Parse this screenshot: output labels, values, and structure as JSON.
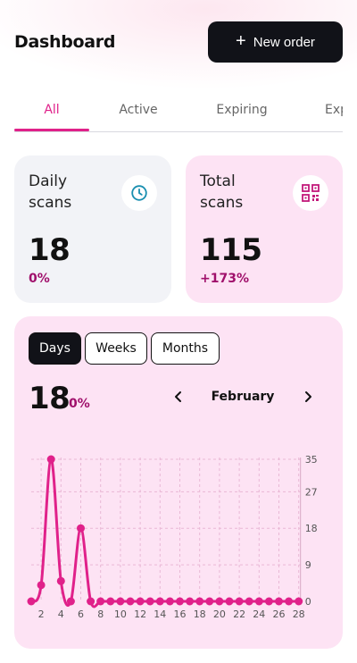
{
  "header": {
    "title": "Dashboard",
    "new_order_label": "New order"
  },
  "tabs": [
    {
      "label": "All",
      "active": true
    },
    {
      "label": "Active",
      "active": false
    },
    {
      "label": "Expiring",
      "active": false
    },
    {
      "label": "Expired",
      "active": false
    }
  ],
  "cards": {
    "daily": {
      "label": "Daily scans",
      "value": "18",
      "change": "0%",
      "icon": "clock-icon"
    },
    "total": {
      "label": "Total scans",
      "value": "115",
      "change": "+173%",
      "icon": "qr-code-icon"
    }
  },
  "chart_panel": {
    "segments": [
      {
        "label": "Days",
        "active": true
      },
      {
        "label": "Weeks",
        "active": false
      },
      {
        "label": "Months",
        "active": false
      }
    ],
    "value": "18",
    "change": "0%",
    "month": "February"
  },
  "colors": {
    "accent": "#e0218a",
    "accent_dark": "#a0106b",
    "card_pink": "#fde3f4",
    "card_gray": "#f2f3f7",
    "button_dark": "#111218"
  },
  "chart_data": {
    "type": "line",
    "x": [
      1,
      2,
      3,
      4,
      5,
      6,
      7,
      8,
      9,
      10,
      11,
      12,
      13,
      14,
      15,
      16,
      17,
      18,
      19,
      20,
      21,
      22,
      23,
      24,
      25,
      26,
      27,
      28
    ],
    "values": [
      0,
      4,
      35,
      5,
      0,
      18,
      0,
      0,
      0,
      0,
      0,
      0,
      0,
      0,
      0,
      0,
      0,
      0,
      0,
      0,
      0,
      0,
      0,
      0,
      0,
      0,
      0,
      0
    ],
    "x_tick_labels": [
      "2",
      "4",
      "6",
      "8",
      "10",
      "12",
      "14",
      "16",
      "18",
      "20",
      "22",
      "24",
      "26",
      "28"
    ],
    "y_ticks": [
      0,
      9,
      18,
      27,
      35
    ],
    "ylim": [
      0,
      35
    ],
    "grid": true,
    "y_axis_position": "right",
    "title": "",
    "xlabel": "",
    "ylabel": ""
  }
}
